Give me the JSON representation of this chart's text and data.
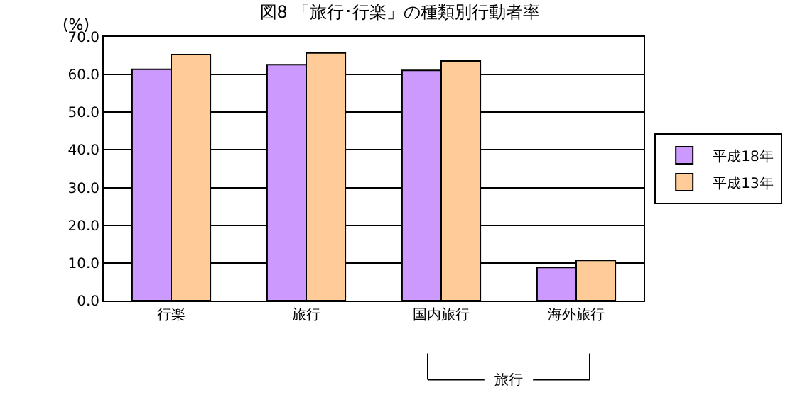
{
  "chart_data": {
    "type": "bar",
    "title": "図8 「旅行･行楽」の種類別行動者率",
    "ylabel": "(%)",
    "categories": [
      "行楽",
      "旅行",
      "国内旅行",
      "海外旅行"
    ],
    "series": [
      {
        "name": "平成18年",
        "color": "#cc99ff",
        "values": [
          61.4,
          62.6,
          61.1,
          8.8
        ]
      },
      {
        "name": "平成13年",
        "color": "#ffcc99",
        "values": [
          65.3,
          65.7,
          63.6,
          10.7
        ]
      }
    ],
    "annotations": [
      "旅行"
    ],
    "ylim": [
      0,
      70
    ],
    "yticks": [
      {
        "value": 0,
        "label": "0.0"
      },
      {
        "value": 10,
        "label": "10.0"
      },
      {
        "value": 20,
        "label": "20.0"
      },
      {
        "value": 30,
        "label": "30.0"
      },
      {
        "value": 40,
        "label": "40.0"
      },
      {
        "value": 50,
        "label": "50.0"
      },
      {
        "value": 60,
        "label": "60.0"
      },
      {
        "value": 70,
        "label": "70.0"
      }
    ],
    "grid": "y",
    "legend": "right"
  }
}
